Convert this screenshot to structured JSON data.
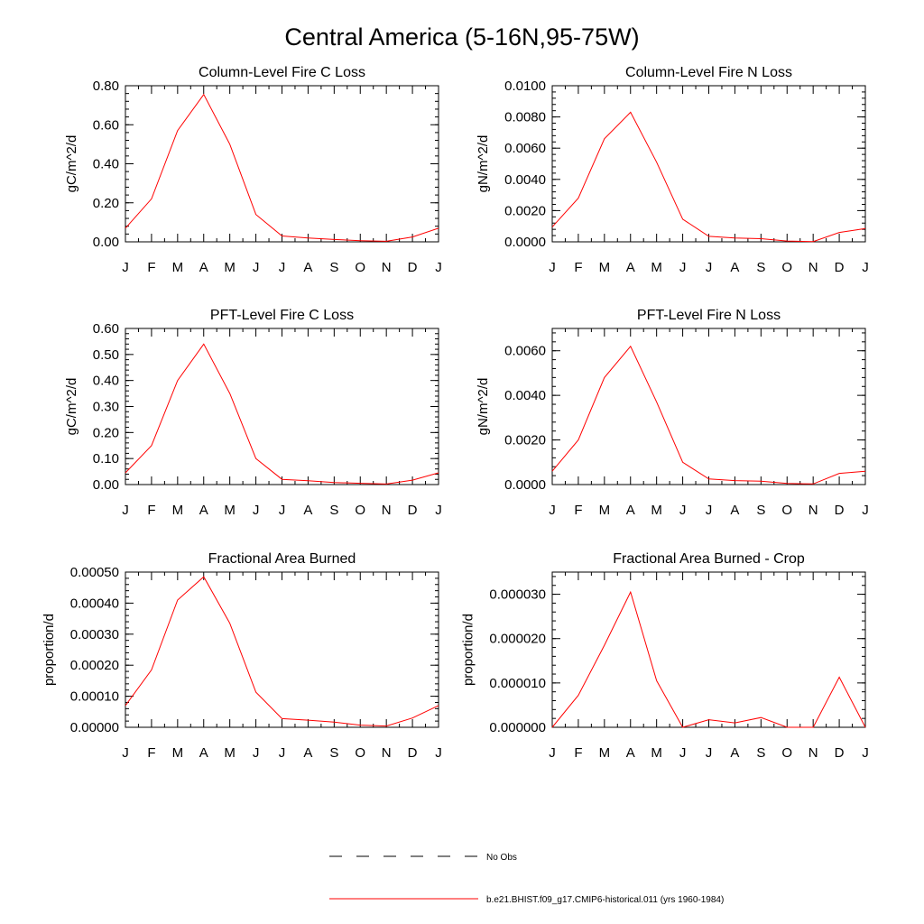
{
  "figure": {
    "title": "Central America (5-16N,95-75W)"
  },
  "chart_data": [
    {
      "type": "line",
      "title": "Column-Level Fire C Loss",
      "ylabel": "gC/m^2/d",
      "x": [
        "J",
        "F",
        "M",
        "A",
        "M",
        "J",
        "J",
        "A",
        "S",
        "O",
        "N",
        "D",
        "J"
      ],
      "ylim": [
        0,
        0.8
      ],
      "yticks": [
        0.0,
        0.2,
        0.4,
        0.6,
        0.8
      ],
      "ytick_labels": [
        "0.00",
        "0.20",
        "0.40",
        "0.60",
        "0.80"
      ],
      "series": [
        {
          "name": "b.e21.BHIST.f09_g17.CMIP6-historical.011 (yrs 1960-1984)",
          "color": "#ff0000",
          "values": [
            0.07,
            0.22,
            0.57,
            0.755,
            0.5,
            0.14,
            0.03,
            0.02,
            0.012,
            0.006,
            0.003,
            0.025,
            0.07
          ]
        }
      ]
    },
    {
      "type": "line",
      "title": "Column-Level Fire N Loss",
      "ylabel": "gN/m^2/d",
      "x": [
        "J",
        "F",
        "M",
        "A",
        "M",
        "J",
        "J",
        "A",
        "S",
        "O",
        "N",
        "D",
        "J"
      ],
      "ylim": [
        0,
        0.01
      ],
      "yticks": [
        0.0,
        0.002,
        0.004,
        0.006,
        0.008,
        0.01
      ],
      "ytick_labels": [
        "0.0000",
        "0.0020",
        "0.0040",
        "0.0060",
        "0.0080",
        "0.0100"
      ],
      "series": [
        {
          "name": "b.e21.BHIST.f09_g17.CMIP6-historical.011 (yrs 1960-1984)",
          "color": "#ff0000",
          "values": [
            0.00095,
            0.0028,
            0.0066,
            0.0083,
            0.0051,
            0.00145,
            0.00035,
            0.00025,
            0.0002,
            5e-05,
            2e-05,
            0.0006,
            0.00085
          ]
        }
      ]
    },
    {
      "type": "line",
      "title": "PFT-Level Fire C Loss",
      "ylabel": "gC/m^2/d",
      "x": [
        "J",
        "F",
        "M",
        "A",
        "M",
        "J",
        "J",
        "A",
        "S",
        "O",
        "N",
        "D",
        "J"
      ],
      "ylim": [
        0,
        0.6
      ],
      "yticks": [
        0.0,
        0.1,
        0.2,
        0.3,
        0.4,
        0.5,
        0.6
      ],
      "ytick_labels": [
        "0.00",
        "0.10",
        "0.20",
        "0.30",
        "0.40",
        "0.50",
        "0.60"
      ],
      "series": [
        {
          "name": "b.e21.BHIST.f09_g17.CMIP6-historical.011 (yrs 1960-1984)",
          "color": "#ff0000",
          "values": [
            0.045,
            0.15,
            0.4,
            0.54,
            0.35,
            0.1,
            0.02,
            0.015,
            0.008,
            0.005,
            0.002,
            0.017,
            0.045
          ]
        }
      ]
    },
    {
      "type": "line",
      "title": "PFT-Level Fire N Loss",
      "ylabel": "gN/m^2/d",
      "x": [
        "J",
        "F",
        "M",
        "A",
        "M",
        "J",
        "J",
        "A",
        "S",
        "O",
        "N",
        "D",
        "J"
      ],
      "ylim": [
        0,
        0.007
      ],
      "yticks": [
        0.0,
        0.002,
        0.004,
        0.006
      ],
      "ytick_labels": [
        "0.0000",
        "0.0020",
        "0.0040",
        "0.0060"
      ],
      "series": [
        {
          "name": "b.e21.BHIST.f09_g17.CMIP6-historical.011 (yrs 1960-1984)",
          "color": "#ff0000",
          "values": [
            0.0006,
            0.002,
            0.0048,
            0.0062,
            0.0037,
            0.001,
            0.00025,
            0.00018,
            0.00015,
            5e-05,
            3e-05,
            0.0005,
            0.0006
          ]
        }
      ]
    },
    {
      "type": "line",
      "title": "Fractional Area Burned",
      "ylabel": "proportion/d",
      "x": [
        "J",
        "F",
        "M",
        "A",
        "M",
        "J",
        "J",
        "A",
        "S",
        "O",
        "N",
        "D",
        "J"
      ],
      "ylim": [
        0,
        0.0005
      ],
      "yticks": [
        0.0,
        0.0001,
        0.0002,
        0.0003,
        0.0004,
        0.0005
      ],
      "ytick_labels": [
        "0.00000",
        "0.00010",
        "0.00020",
        "0.00030",
        "0.00040",
        "0.00050"
      ],
      "series": [
        {
          "name": "b.e21.BHIST.f09_g17.CMIP6-historical.011 (yrs 1960-1984)",
          "color": "#ff0000",
          "values": [
            7e-05,
            0.000185,
            0.00041,
            0.000485,
            0.000335,
            0.000113,
            2.8e-05,
            2.3e-05,
            1.7e-05,
            7e-06,
            4e-06,
            3e-05,
            7e-05
          ]
        }
      ]
    },
    {
      "type": "line",
      "title": "Fractional Area Burned - Crop",
      "ylabel": "proportion/d",
      "x": [
        "J",
        "F",
        "M",
        "A",
        "M",
        "J",
        "J",
        "A",
        "S",
        "O",
        "N",
        "D",
        "J"
      ],
      "ylim": [
        0,
        3.5e-05
      ],
      "yticks": [
        0.0,
        1e-05,
        2e-05,
        3e-05
      ],
      "ytick_labels": [
        "0.000000",
        "0.000010",
        "0.000020",
        "0.000030"
      ],
      "series": [
        {
          "name": "b.e21.BHIST.f09_g17.CMIP6-historical.011 (yrs 1960-1984)",
          "color": "#ff0000",
          "values": [
            0.0,
            7.2e-06,
            1.85e-05,
            3.05e-05,
            1.05e-05,
            0.0,
            1.7e-06,
            1e-06,
            2.2e-06,
            0.0,
            0.0,
            1.13e-05,
            0.0
          ]
        }
      ]
    }
  ],
  "legend": {
    "items": [
      {
        "label": "No Obs",
        "style": "dashed",
        "color": "#000000"
      },
      {
        "label": "b.e21.BHIST.f09_g17.CMIP6-historical.011 (yrs 1960-1984)",
        "style": "solid",
        "color": "#ff0000"
      }
    ]
  }
}
